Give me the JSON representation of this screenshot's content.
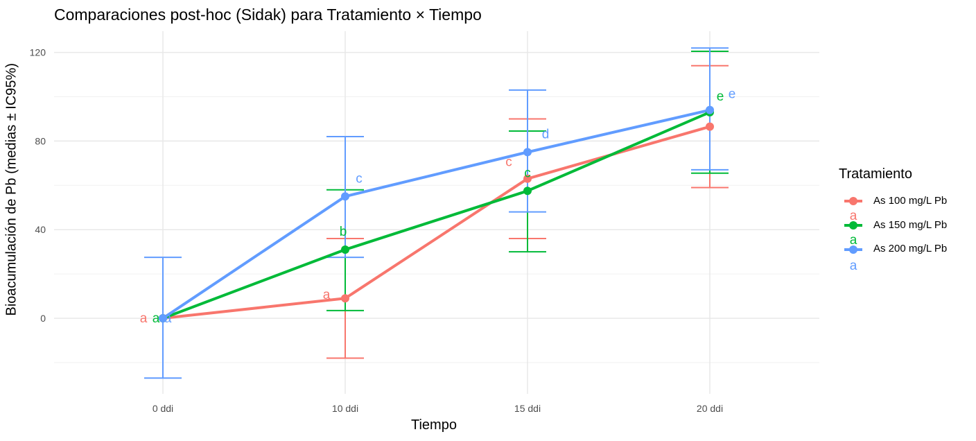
{
  "chart_data": {
    "type": "line",
    "title": "Comparaciones post-hoc (Sidak) para Tratamiento × Tiempo",
    "xlabel": "Tiempo",
    "ylabel": "Bioacumulación de Pb (medias ± IC95%)",
    "categories": [
      "0 ddi",
      "10 ddi",
      "15 ddi",
      "20 ddi"
    ],
    "ylim": [
      -32,
      122
    ],
    "yticks": [
      0,
      40,
      80,
      120
    ],
    "grid": true,
    "legend": {
      "title": "Tratamiento",
      "position": "right",
      "letters": [
        "a",
        "a",
        "a"
      ]
    },
    "series": [
      {
        "name": "As 100 mg/L Pb",
        "color": "#F8766D",
        "values": [
          0,
          9,
          63,
          86.5
        ],
        "lower": [
          null,
          -18,
          36,
          59
        ],
        "upper": [
          null,
          36,
          90,
          114
        ],
        "letters": [
          "a",
          "a",
          "c",
          ""
        ]
      },
      {
        "name": "As 150 mg/L Pb",
        "color": "#00BA38",
        "values": [
          0,
          31,
          57.5,
          93
        ],
        "lower": [
          null,
          3.5,
          30,
          65.5
        ],
        "upper": [
          null,
          58,
          84.5,
          120.5
        ],
        "letters": [
          "a",
          "b",
          "c",
          "e"
        ]
      },
      {
        "name": "As 200 mg/L Pb",
        "color": "#619CFF",
        "values": [
          0,
          55,
          75,
          94
        ],
        "lower": [
          -27,
          27.5,
          48,
          67
        ],
        "upper": [
          27.5,
          82,
          103,
          122
        ],
        "letters": [
          "a",
          "c",
          "d",
          "e"
        ]
      }
    ]
  }
}
